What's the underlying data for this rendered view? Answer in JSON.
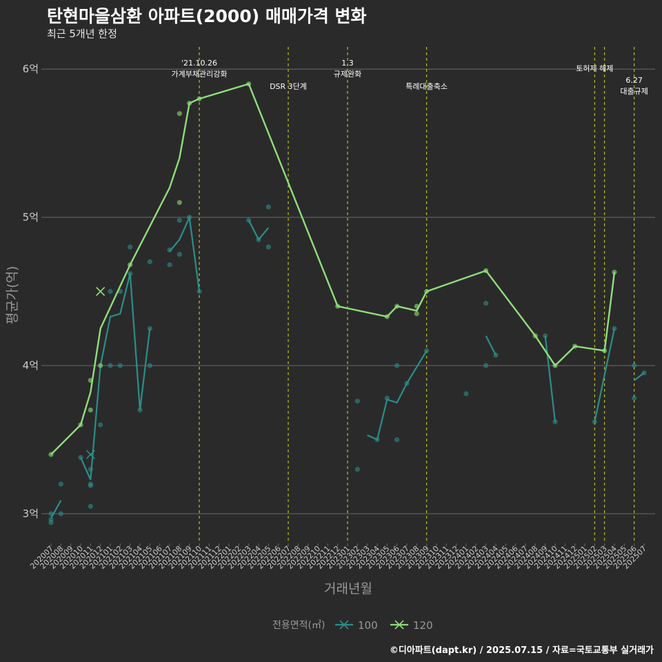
{
  "header": {
    "title": "탄현마을삼환 아파트(2000) 매매가격 변화",
    "subtitle": "최근 5개년 한정"
  },
  "footer": {
    "caption": "©디아파트(dapt.kr) / 2025.07.15 / 자료=국토교통부 실거래가"
  },
  "colors": {
    "background": "#2b2a2b",
    "series_100": "#2a8f89",
    "series_120": "#8ee07a",
    "event_lines": "#d4e01a",
    "grid": "#6a6a6a",
    "text": "#ffffff",
    "axis_text": "#cccccc",
    "label_text": "#999999"
  },
  "chart_data": {
    "type": "line",
    "xlabel": "거래년월",
    "ylabel": "평균가(억)",
    "y_ticks": [
      {
        "value": 3,
        "label": "3억"
      },
      {
        "value": 4,
        "label": "4억"
      },
      {
        "value": 5,
        "label": "5억"
      },
      {
        "value": 6,
        "label": "6억"
      }
    ],
    "ylim": [
      2.8,
      6.15
    ],
    "grid": "horizontal",
    "legend": {
      "title": "전용면적(㎡)",
      "placement": "bottom"
    },
    "categories": [
      "202007",
      "202008",
      "202009",
      "202010",
      "202011",
      "202012",
      "202101",
      "202102",
      "202103",
      "202104",
      "202105",
      "202106",
      "202107",
      "202108",
      "202109",
      "202110",
      "202111",
      "202112",
      "202201",
      "202202",
      "202203",
      "202204",
      "202205",
      "202206",
      "202207",
      "202208",
      "202209",
      "202210",
      "202211",
      "202212",
      "202301",
      "202302",
      "202303",
      "202304",
      "202305",
      "202306",
      "202307",
      "202308",
      "202309",
      "202310",
      "202311",
      "202312",
      "202401",
      "202402",
      "202403",
      "202404",
      "202405",
      "202406",
      "202407",
      "202408",
      "202409",
      "202410",
      "202411",
      "202412",
      "202501",
      "202502",
      "202503",
      "202504",
      "202505",
      "202506",
      "202507"
    ],
    "events": [
      {
        "x": 15.0,
        "lines": [
          "'21.10.26",
          "가계부채관리강화"
        ],
        "label_level": 0
      },
      {
        "x": 24.0,
        "lines": [
          "DSR 3단계"
        ],
        "label_level": 1
      },
      {
        "x": 30.0,
        "lines": [
          "1.3",
          "규제완화"
        ],
        "label_level": 0
      },
      {
        "x": 38.0,
        "lines": [
          "특례대출축소"
        ],
        "label_level": 1
      },
      {
        "x": 55.0,
        "lines": [
          "토허제 해제"
        ],
        "label_level": 0
      },
      {
        "x": 56.0,
        "lines": [],
        "label_level": 0
      },
      {
        "x": 59.0,
        "lines": [
          "6.27",
          "대출규제"
        ],
        "label_level": 2
      }
    ],
    "series": [
      {
        "name": "100",
        "segments": [
          [
            [
              0,
              2.97
            ],
            [
              1,
              3.09
            ]
          ],
          [
            [
              3,
              3.38
            ],
            [
              4,
              3.23
            ],
            [
              5,
              4.0
            ],
            [
              6,
              4.33
            ],
            [
              7,
              4.35
            ],
            [
              8,
              4.62
            ],
            [
              9,
              3.7
            ],
            [
              10,
              4.25
            ]
          ],
          [
            [
              12,
              4.77
            ],
            [
              13,
              4.85
            ],
            [
              14,
              5.0
            ],
            [
              15,
              4.5
            ]
          ],
          [
            [
              20,
              4.98
            ],
            [
              21,
              4.85
            ],
            [
              22,
              4.93
            ]
          ],
          [
            [
              32,
              3.53
            ],
            [
              33,
              3.5
            ],
            [
              34,
              3.77
            ],
            [
              35,
              3.75
            ],
            [
              36,
              3.88
            ],
            [
              38,
              4.1
            ]
          ],
          [
            [
              44,
              4.2
            ],
            [
              45,
              4.07
            ]
          ],
          [
            [
              50,
              4.2
            ],
            [
              51,
              3.62
            ]
          ],
          [
            [
              55,
              3.62
            ],
            [
              57,
              4.25
            ]
          ],
          [
            [
              59,
              3.9
            ],
            [
              60,
              3.95
            ]
          ]
        ],
        "points": [
          [
            0,
            2.94
          ],
          [
            0,
            2.96
          ],
          [
            0,
            3.0
          ],
          [
            1,
            3.2
          ],
          [
            1,
            3.0
          ],
          [
            3,
            3.38
          ],
          [
            4,
            3.3
          ],
          [
            4,
            3.2
          ],
          [
            4,
            3.19
          ],
          [
            4,
            3.05
          ],
          [
            5,
            3.6
          ],
          [
            6,
            4.0
          ],
          [
            6,
            4.5
          ],
          [
            7,
            4.0
          ],
          [
            7,
            4.5
          ],
          [
            8,
            4.8
          ],
          [
            8,
            4.62
          ],
          [
            9,
            3.7
          ],
          [
            10,
            4.25
          ],
          [
            10,
            4.0
          ],
          [
            10,
            4.7
          ],
          [
            12,
            4.68
          ],
          [
            12,
            4.78
          ],
          [
            13,
            4.75
          ],
          [
            13,
            4.98
          ],
          [
            14,
            5.0
          ],
          [
            15,
            4.5
          ],
          [
            20,
            4.98
          ],
          [
            21,
            4.85
          ],
          [
            22,
            5.07
          ],
          [
            22,
            4.8
          ],
          [
            31,
            3.76
          ],
          [
            31,
            3.3
          ],
          [
            33,
            3.5
          ],
          [
            34,
            3.78
          ],
          [
            35,
            4.0
          ],
          [
            35,
            3.5
          ],
          [
            36,
            3.88
          ],
          [
            38,
            4.1
          ],
          [
            42,
            3.81
          ],
          [
            44,
            4.42
          ],
          [
            44,
            4.0
          ],
          [
            45,
            4.07
          ],
          [
            50,
            4.2
          ],
          [
            51,
            3.62
          ],
          [
            55,
            3.62
          ],
          [
            57,
            4.25
          ],
          [
            59,
            4.0
          ],
          [
            59,
            3.78
          ],
          [
            60,
            3.95
          ]
        ],
        "crosses": [
          [
            4,
            3.4
          ]
        ]
      },
      {
        "name": "120",
        "segments": [
          [
            [
              0,
              3.4
            ],
            [
              3,
              3.6
            ],
            [
              4,
              3.82
            ],
            [
              5,
              4.25
            ],
            [
              8,
              4.68
            ],
            [
              12,
              5.2
            ],
            [
              13,
              5.4
            ],
            [
              14,
              5.77
            ],
            [
              15,
              5.8
            ],
            [
              20,
              5.9
            ],
            [
              29,
              4.4
            ],
            [
              34,
              4.33
            ],
            [
              35,
              4.4
            ],
            [
              37,
              4.37
            ],
            [
              38,
              4.5
            ],
            [
              44,
              4.64
            ],
            [
              49,
              4.2
            ],
            [
              51,
              4.0
            ],
            [
              53,
              4.13
            ],
            [
              56,
              4.1
            ],
            [
              57,
              4.63
            ]
          ]
        ],
        "points": [
          [
            0,
            3.4
          ],
          [
            3,
            3.6
          ],
          [
            4,
            3.9
          ],
          [
            4,
            3.7
          ],
          [
            5,
            4.0
          ],
          [
            8,
            4.68
          ],
          [
            13,
            5.7
          ],
          [
            13,
            5.1
          ],
          [
            14,
            5.77
          ],
          [
            15,
            5.8
          ],
          [
            20,
            5.9
          ],
          [
            29,
            4.4
          ],
          [
            34,
            4.33
          ],
          [
            35,
            4.4
          ],
          [
            37,
            4.4
          ],
          [
            37,
            4.35
          ],
          [
            38,
            4.5
          ],
          [
            44,
            4.64
          ],
          [
            49,
            4.2
          ],
          [
            51,
            4.0
          ],
          [
            53,
            4.13
          ],
          [
            56,
            4.1
          ],
          [
            57,
            4.63
          ]
        ],
        "crosses": [
          [
            5,
            4.5
          ]
        ]
      }
    ]
  }
}
